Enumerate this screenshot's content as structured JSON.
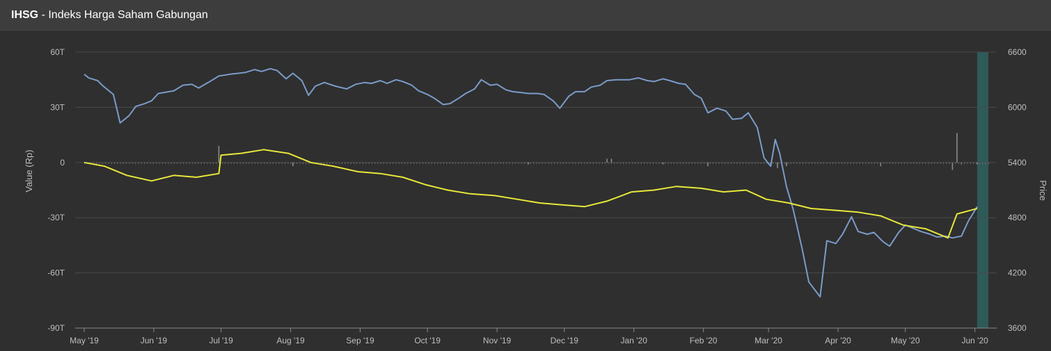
{
  "header": {
    "symbol": "IHSG",
    "separator": " - ",
    "name": "Indeks Harga Saham Gabungan"
  },
  "colors": {
    "background": "#2f2f2f",
    "header": "#3d3d3d",
    "price_line": "#7b9bc9",
    "value_line": "#e8e83a",
    "volume_bars": "#8a8a8a",
    "highlight_band": "#2e5a58",
    "grid": "#4a4a4a"
  },
  "chart_data": {
    "type": "line",
    "xlabel": "",
    "ylabel_left": "Value (Rp)",
    "ylabel_right": "Price",
    "grid": true,
    "legend": "none",
    "left_axis": {
      "min": -90,
      "max": 60,
      "ticks": [
        60,
        30,
        0,
        -30,
        -60,
        -90
      ],
      "tick_labels": [
        "60T",
        "30T",
        "0",
        "-30T",
        "-60T",
        "-90T"
      ]
    },
    "right_axis": {
      "min": 3600,
      "max": 6600,
      "ticks": [
        6600,
        6000,
        5400,
        4800,
        4200,
        3600
      ],
      "tick_labels": [
        "6600",
        "6000",
        "5400",
        "4800",
        "4200",
        "3600"
      ]
    },
    "x_ticks": [
      {
        "date": "2019-05-01",
        "label": "May '19"
      },
      {
        "date": "2019-06-01",
        "label": "Jun '19"
      },
      {
        "date": "2019-07-01",
        "label": "Jul '19"
      },
      {
        "date": "2019-08-01",
        "label": "Aug '19"
      },
      {
        "date": "2019-09-01",
        "label": "Sep '19"
      },
      {
        "date": "2019-10-01",
        "label": "Oct '19"
      },
      {
        "date": "2019-11-01",
        "label": "Nov '19"
      },
      {
        "date": "2019-12-01",
        "label": "Dec '19"
      },
      {
        "date": "2020-01-01",
        "label": "Jan '20"
      },
      {
        "date": "2020-02-01",
        "label": "Feb '20"
      },
      {
        "date": "2020-03-01",
        "label": "Mar '20"
      },
      {
        "date": "2020-04-01",
        "label": "Apr '20"
      },
      {
        "date": "2020-05-01",
        "label": "May '20"
      },
      {
        "date": "2020-06-01",
        "label": "Jun '20"
      }
    ],
    "highlight": {
      "from": "2020-06-02",
      "to": "2020-06-07"
    },
    "series": [
      {
        "axis": "right",
        "points": [
          [
            "2019-05-01",
            6360
          ],
          [
            "2019-05-03",
            6320
          ],
          [
            "2019-05-07",
            6290
          ],
          [
            "2019-05-09",
            6240
          ],
          [
            "2019-05-14",
            6140
          ],
          [
            "2019-05-17",
            5830
          ],
          [
            "2019-05-21",
            5910
          ],
          [
            "2019-05-24",
            6010
          ],
          [
            "2019-05-28",
            6040
          ],
          [
            "2019-05-31",
            6070
          ],
          [
            "2019-06-03",
            6150
          ],
          [
            "2019-06-10",
            6180
          ],
          [
            "2019-06-14",
            6240
          ],
          [
            "2019-06-18",
            6250
          ],
          [
            "2019-06-21",
            6210
          ],
          [
            "2019-06-26",
            6280
          ],
          [
            "2019-06-30",
            6340
          ],
          [
            "2019-07-05",
            6360
          ],
          [
            "2019-07-09",
            6370
          ],
          [
            "2019-07-12",
            6380
          ],
          [
            "2019-07-16",
            6410
          ],
          [
            "2019-07-19",
            6390
          ],
          [
            "2019-07-23",
            6420
          ],
          [
            "2019-07-26",
            6400
          ],
          [
            "2019-07-30",
            6310
          ],
          [
            "2019-08-02",
            6370
          ],
          [
            "2019-08-06",
            6290
          ],
          [
            "2019-08-09",
            6130
          ],
          [
            "2019-08-12",
            6230
          ],
          [
            "2019-08-16",
            6270
          ],
          [
            "2019-08-21",
            6230
          ],
          [
            "2019-08-26",
            6200
          ],
          [
            "2019-08-30",
            6250
          ],
          [
            "2019-09-03",
            6270
          ],
          [
            "2019-09-06",
            6260
          ],
          [
            "2019-09-10",
            6290
          ],
          [
            "2019-09-13",
            6260
          ],
          [
            "2019-09-17",
            6300
          ],
          [
            "2019-09-20",
            6280
          ],
          [
            "2019-09-24",
            6240
          ],
          [
            "2019-09-27",
            6180
          ],
          [
            "2019-10-01",
            6140
          ],
          [
            "2019-10-04",
            6100
          ],
          [
            "2019-10-08",
            6030
          ],
          [
            "2019-10-11",
            6040
          ],
          [
            "2019-10-15",
            6100
          ],
          [
            "2019-10-18",
            6150
          ],
          [
            "2019-10-22",
            6200
          ],
          [
            "2019-10-25",
            6300
          ],
          [
            "2019-10-29",
            6240
          ],
          [
            "2019-11-01",
            6250
          ],
          [
            "2019-11-05",
            6190
          ],
          [
            "2019-11-08",
            6170
          ],
          [
            "2019-11-12",
            6160
          ],
          [
            "2019-11-15",
            6150
          ],
          [
            "2019-11-19",
            6150
          ],
          [
            "2019-11-22",
            6140
          ],
          [
            "2019-11-26",
            6070
          ],
          [
            "2019-11-29",
            5990
          ],
          [
            "2019-12-03",
            6120
          ],
          [
            "2019-12-06",
            6170
          ],
          [
            "2019-12-10",
            6170
          ],
          [
            "2019-12-13",
            6220
          ],
          [
            "2019-12-17",
            6240
          ],
          [
            "2019-12-20",
            6290
          ],
          [
            "2019-12-24",
            6300
          ],
          [
            "2019-12-30",
            6300
          ],
          [
            "2020-01-03",
            6320
          ],
          [
            "2020-01-07",
            6290
          ],
          [
            "2020-01-10",
            6280
          ],
          [
            "2020-01-14",
            6310
          ],
          [
            "2020-01-17",
            6290
          ],
          [
            "2020-01-21",
            6260
          ],
          [
            "2020-01-24",
            6250
          ],
          [
            "2020-01-28",
            6140
          ],
          [
            "2020-01-31",
            6100
          ],
          [
            "2020-02-03",
            5940
          ],
          [
            "2020-02-07",
            5990
          ],
          [
            "2020-02-11",
            5960
          ],
          [
            "2020-02-14",
            5870
          ],
          [
            "2020-02-18",
            5880
          ],
          [
            "2020-02-21",
            5940
          ],
          [
            "2020-02-25",
            5780
          ],
          [
            "2020-02-28",
            5450
          ],
          [
            "2020-03-02",
            5360
          ],
          [
            "2020-03-04",
            5650
          ],
          [
            "2020-03-06",
            5500
          ],
          [
            "2020-03-09",
            5140
          ],
          [
            "2020-03-12",
            4890
          ],
          [
            "2020-03-16",
            4460
          ],
          [
            "2020-03-19",
            4100
          ],
          [
            "2020-03-24",
            3940
          ],
          [
            "2020-03-27",
            4550
          ],
          [
            "2020-03-31",
            4520
          ],
          [
            "2020-04-03",
            4620
          ],
          [
            "2020-04-07",
            4810
          ],
          [
            "2020-04-10",
            4650
          ],
          [
            "2020-04-14",
            4620
          ],
          [
            "2020-04-17",
            4640
          ],
          [
            "2020-04-21",
            4540
          ],
          [
            "2020-04-24",
            4490
          ],
          [
            "2020-04-28",
            4640
          ],
          [
            "2020-05-01",
            4720
          ],
          [
            "2020-05-05",
            4680
          ],
          [
            "2020-05-08",
            4650
          ],
          [
            "2020-05-12",
            4620
          ],
          [
            "2020-05-15",
            4590
          ],
          [
            "2020-05-19",
            4600
          ],
          [
            "2020-05-22",
            4580
          ],
          [
            "2020-05-26",
            4600
          ],
          [
            "2020-05-29",
            4760
          ],
          [
            "2020-06-02",
            4920
          ]
        ]
      },
      {
        "axis": "left",
        "points": [
          [
            "2019-05-01",
            0
          ],
          [
            "2019-05-10",
            -2
          ],
          [
            "2019-05-20",
            -7
          ],
          [
            "2019-05-31",
            -10
          ],
          [
            "2019-06-10",
            -7
          ],
          [
            "2019-06-20",
            -8
          ],
          [
            "2019-06-30",
            -6
          ],
          [
            "2019-07-01",
            4
          ],
          [
            "2019-07-10",
            5
          ],
          [
            "2019-07-20",
            7
          ],
          [
            "2019-07-31",
            5
          ],
          [
            "2019-08-10",
            0
          ],
          [
            "2019-08-20",
            -2
          ],
          [
            "2019-08-31",
            -5
          ],
          [
            "2019-09-10",
            -6
          ],
          [
            "2019-09-20",
            -8
          ],
          [
            "2019-09-30",
            -12
          ],
          [
            "2019-10-10",
            -15
          ],
          [
            "2019-10-20",
            -17
          ],
          [
            "2019-10-31",
            -18
          ],
          [
            "2019-11-10",
            -20
          ],
          [
            "2019-11-20",
            -22
          ],
          [
            "2019-11-30",
            -23
          ],
          [
            "2019-12-10",
            -24
          ],
          [
            "2019-12-20",
            -21
          ],
          [
            "2019-12-31",
            -16
          ],
          [
            "2020-01-10",
            -15
          ],
          [
            "2020-01-20",
            -13
          ],
          [
            "2020-01-31",
            -14
          ],
          [
            "2020-02-10",
            -16
          ],
          [
            "2020-02-20",
            -15
          ],
          [
            "2020-02-29",
            -20
          ],
          [
            "2020-03-10",
            -22
          ],
          [
            "2020-03-20",
            -25
          ],
          [
            "2020-03-31",
            -26
          ],
          [
            "2020-04-10",
            -27
          ],
          [
            "2020-04-20",
            -29
          ],
          [
            "2020-04-30",
            -34
          ],
          [
            "2020-05-10",
            -36
          ],
          [
            "2020-05-20",
            -41
          ],
          [
            "2020-05-24",
            -28
          ],
          [
            "2020-06-02",
            -25
          ]
        ]
      },
      {
        "axis": "left",
        "type": "bar",
        "points": [
          [
            "2019-06-30",
            9
          ],
          [
            "2019-12-20",
            2
          ],
          [
            "2019-12-22",
            2
          ],
          [
            "2020-05-24",
            16
          ],
          [
            "2020-05-22",
            -4
          ],
          [
            "2020-05-26",
            -1
          ],
          [
            "2020-02-03",
            -2
          ],
          [
            "2019-08-02",
            -2
          ],
          [
            "2020-03-05",
            -3
          ],
          [
            "2020-03-09",
            -2
          ],
          [
            "2019-11-15",
            -1
          ],
          [
            "2020-01-14",
            -1
          ],
          [
            "2020-04-20",
            -2
          ],
          [
            "2020-06-02",
            -1
          ]
        ]
      }
    ]
  }
}
